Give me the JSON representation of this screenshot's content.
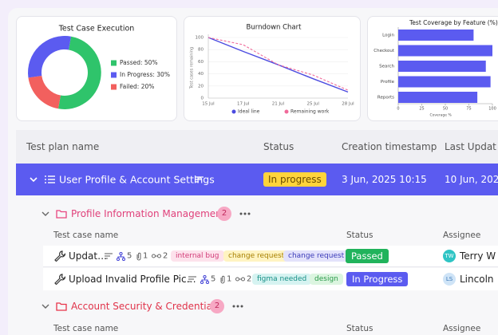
{
  "chart_data": [
    {
      "type": "pie",
      "title": "Test Case Execution",
      "categories": [
        "Passed",
        "In Progress",
        "Failed"
      ],
      "values": [
        50,
        30,
        20
      ],
      "value_labels": [
        "50%",
        "30%",
        "20%"
      ],
      "colors": [
        "#2fc46b",
        "#5b5bf0",
        "#f2605e"
      ],
      "donut": true
    },
    {
      "type": "line",
      "title": "Burndown Chart",
      "y_label": "Test cases remaining",
      "categories": [
        "15 Jul",
        "17 Jul",
        "21 Jul",
        "25 Jul",
        "28 Jul"
      ],
      "series": [
        {
          "name": "Ideal line",
          "color": "#4b4be0",
          "style": "solid",
          "values": [
            100,
            77,
            55,
            32,
            10
          ]
        },
        {
          "name": "Remaining work",
          "color": "#f06a9a",
          "style": "dashed",
          "values": [
            100,
            88,
            55,
            38,
            13
          ]
        }
      ],
      "ylim": [
        0,
        100
      ],
      "yticks": [
        0,
        20,
        40,
        60,
        80,
        100
      ],
      "grid": true
    },
    {
      "type": "bar",
      "orientation": "horizontal",
      "title": "Test Coverage by Feature (%)",
      "x_label": "Coverage %",
      "categories": [
        "Login",
        "Checkout",
        "Search",
        "Profile",
        "Reports"
      ],
      "values": [
        80,
        100,
        93,
        98,
        84
      ],
      "color": "#5b5bf0",
      "xlim": [
        0,
        100
      ],
      "xticks": [
        0,
        25,
        50,
        75,
        100
      ]
    }
  ],
  "table": {
    "columns": [
      "Test plan name",
      "Status",
      "Creation timestamp",
      "Last Updat"
    ],
    "plan": {
      "name": "User Profile & Account Settings",
      "status": "In progress",
      "created": "3 Jun, 2025 10:15",
      "updated": "10 Jun, 2025"
    },
    "groups": [
      {
        "name": "Profile Information Management",
        "count": 2,
        "columns": [
          "Test case name",
          "Status",
          "Assignee"
        ],
        "cases": [
          {
            "name": "Updat…",
            "subtasks": 5,
            "attachments": 1,
            "links": 2,
            "tags": [
              "internal bug",
              "change request",
              "change request"
            ],
            "status": "Passed",
            "initials": "TW",
            "assignee": "Terry W"
          },
          {
            "name": "Upload Invalid Profile Pic…",
            "subtasks": 5,
            "attachments": 1,
            "links": 2,
            "tags": [
              "figma needed",
              "design"
            ],
            "status": "In Progress",
            "initials": "LS",
            "assignee": "Lincoln"
          }
        ]
      },
      {
        "name": "Account Security & Credentials",
        "count": 2,
        "columns": [
          "Test case name",
          "Status",
          "Assignee"
        ]
      }
    ]
  }
}
